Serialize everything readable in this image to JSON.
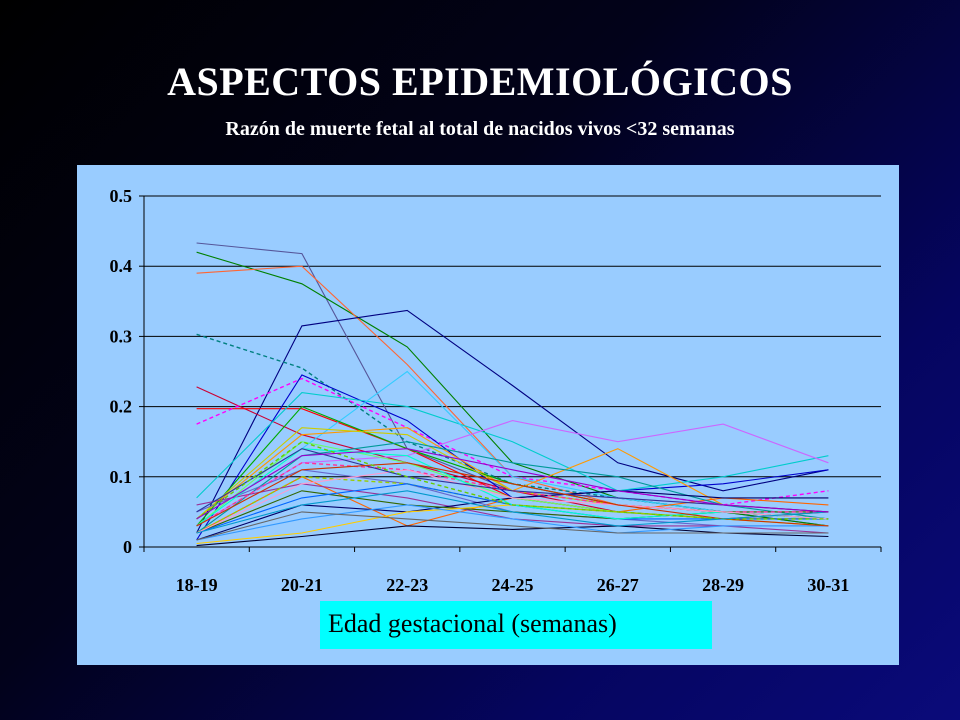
{
  "title": "ASPECTOS EPIDEMIOLÓGICOS",
  "subtitle": "Razón de muerte fetal al total de nacidos vivos <32 semanas",
  "chart_data": {
    "type": "line",
    "title": "ASPECTOS EPIDEMIOLÓGICOS",
    "subtitle": "Razón de muerte fetal al total de nacidos vivos <32 semanas",
    "xlabel": "Edad gestacional (semanas)",
    "ylabel": "",
    "categories": [
      "18-19",
      "20-21",
      "22-23",
      "24-25",
      "26-27",
      "28-29",
      "30-31"
    ],
    "ylim": [
      0,
      0.5
    ],
    "yticks": [
      "0",
      "0.1",
      "0.2",
      "0.3",
      "0.4",
      "0.5"
    ],
    "grid": "horizontal",
    "legend": "none",
    "series": [
      {
        "color": "#555599",
        "dash": false,
        "values": [
          0.433,
          0.418,
          0.14,
          0.08,
          0.06,
          0.05,
          0.03
        ]
      },
      {
        "color": "#008000",
        "dash": false,
        "values": [
          0.42,
          0.375,
          0.285,
          0.12,
          0.07,
          0.05,
          0.03
        ]
      },
      {
        "color": "#ff6633",
        "dash": false,
        "values": [
          0.39,
          0.4,
          0.26,
          0.1,
          0.06,
          0.05,
          0.04
        ]
      },
      {
        "color": "#000080",
        "dash": false,
        "values": [
          0.02,
          0.315,
          0.337,
          0.23,
          0.12,
          0.08,
          0.11
        ]
      },
      {
        "color": "#008080",
        "dash": true,
        "values": [
          0.303,
          0.255,
          0.15,
          0.09,
          0.07,
          0.05,
          0.04
        ]
      },
      {
        "color": "#cc0033",
        "dash": false,
        "values": [
          0.228,
          0.16,
          0.12,
          0.08,
          0.05,
          0.04,
          0.04
        ]
      },
      {
        "color": "#ff0000",
        "dash": false,
        "values": [
          0.197,
          0.197,
          0.14,
          0.07,
          0.05,
          0.04,
          0.05
        ]
      },
      {
        "color": "#ff00ff",
        "dash": true,
        "values": [
          0.175,
          0.24,
          0.17,
          0.1,
          0.08,
          0.06,
          0.08
        ]
      },
      {
        "color": "#0000cc",
        "dash": false,
        "values": [
          0.01,
          0.245,
          0.18,
          0.07,
          0.08,
          0.09,
          0.11
        ]
      },
      {
        "color": "#00cccc",
        "dash": false,
        "values": [
          0.07,
          0.22,
          0.2,
          0.15,
          0.08,
          0.1,
          0.13
        ]
      },
      {
        "color": "#33ccff",
        "dash": false,
        "values": [
          0.05,
          0.14,
          0.25,
          0.1,
          0.07,
          0.05,
          0.04
        ]
      },
      {
        "color": "#cc66ff",
        "dash": false,
        "values": [
          0.03,
          0.12,
          0.13,
          0.18,
          0.15,
          0.175,
          0.12
        ]
      },
      {
        "color": "#ff9900",
        "dash": false,
        "values": [
          0.04,
          0.16,
          0.17,
          0.08,
          0.14,
          0.06,
          0.05
        ]
      },
      {
        "color": "#ff6600",
        "dash": false,
        "values": [
          0.02,
          0.1,
          0.03,
          0.07,
          0.05,
          0.07,
          0.06
        ]
      },
      {
        "color": "#00aa00",
        "dash": false,
        "values": [
          0.03,
          0.2,
          0.14,
          0.09,
          0.06,
          0.05,
          0.04
        ]
      },
      {
        "color": "#cccc00",
        "dash": false,
        "values": [
          0.04,
          0.17,
          0.16,
          0.08,
          0.06,
          0.05,
          0.05
        ]
      },
      {
        "color": "#66ff66",
        "dash": false,
        "values": [
          0.03,
          0.15,
          0.12,
          0.07,
          0.05,
          0.04,
          0.03
        ]
      },
      {
        "color": "#009999",
        "dash": false,
        "values": [
          0.02,
          0.13,
          0.15,
          0.12,
          0.1,
          0.06,
          0.04
        ]
      },
      {
        "color": "#6666cc",
        "dash": false,
        "values": [
          0.05,
          0.11,
          0.09,
          0.05,
          0.04,
          0.03,
          0.03
        ]
      },
      {
        "color": "#993399",
        "dash": false,
        "values": [
          0.06,
          0.09,
          0.07,
          0.04,
          0.03,
          0.03,
          0.02
        ]
      },
      {
        "color": "#000066",
        "dash": false,
        "values": [
          0.01,
          0.06,
          0.05,
          0.07,
          0.08,
          0.07,
          0.07
        ]
      },
      {
        "color": "#336600",
        "dash": false,
        "values": [
          0.02,
          0.08,
          0.06,
          0.05,
          0.04,
          0.05,
          0.05
        ]
      },
      {
        "color": "#ffcc00",
        "dash": false,
        "values": [
          0.005,
          0.02,
          0.05,
          0.06,
          0.05,
          0.04,
          0.03
        ]
      },
      {
        "color": "#000033",
        "dash": false,
        "values": [
          0.002,
          0.015,
          0.03,
          0.025,
          0.03,
          0.02,
          0.015
        ]
      },
      {
        "color": "#3399ff",
        "dash": false,
        "values": [
          0.01,
          0.04,
          0.06,
          0.04,
          0.02,
          0.03,
          0.03
        ]
      },
      {
        "color": "#ff3399",
        "dash": true,
        "values": [
          0.03,
          0.12,
          0.11,
          0.08,
          0.06,
          0.05,
          0.05
        ]
      },
      {
        "color": "#99cc00",
        "dash": true,
        "values": [
          0.02,
          0.1,
          0.09,
          0.06,
          0.05,
          0.04,
          0.04
        ]
      },
      {
        "color": "#0066ff",
        "dash": false,
        "values": [
          0.02,
          0.07,
          0.09,
          0.06,
          0.04,
          0.04,
          0.04
        ]
      },
      {
        "color": "#666666",
        "dash": false,
        "values": [
          0.01,
          0.05,
          0.04,
          0.03,
          0.02,
          0.02,
          0.02
        ]
      },
      {
        "color": "#00ffcc",
        "dash": false,
        "values": [
          0.03,
          0.14,
          0.13,
          0.06,
          0.04,
          0.05,
          0.04
        ]
      },
      {
        "color": "#ff99cc",
        "dash": false,
        "values": [
          0.02,
          0.09,
          0.11,
          0.07,
          0.06,
          0.05,
          0.04
        ]
      },
      {
        "color": "#333399",
        "dash": false,
        "values": [
          0.05,
          0.14,
          0.1,
          0.08,
          0.07,
          0.06,
          0.05
        ]
      },
      {
        "color": "#cc3300",
        "dash": false,
        "values": [
          0.03,
          0.11,
          0.12,
          0.09,
          0.06,
          0.04,
          0.03
        ]
      },
      {
        "color": "#66cc00",
        "dash": true,
        "values": [
          0.04,
          0.15,
          0.1,
          0.06,
          0.05,
          0.04,
          0.04
        ]
      },
      {
        "color": "#0099cc",
        "dash": false,
        "values": [
          0.02,
          0.06,
          0.08,
          0.05,
          0.03,
          0.04,
          0.05
        ]
      },
      {
        "color": "#9900cc",
        "dash": false,
        "values": [
          0.04,
          0.13,
          0.14,
          0.11,
          0.08,
          0.06,
          0.05
        ]
      }
    ]
  }
}
